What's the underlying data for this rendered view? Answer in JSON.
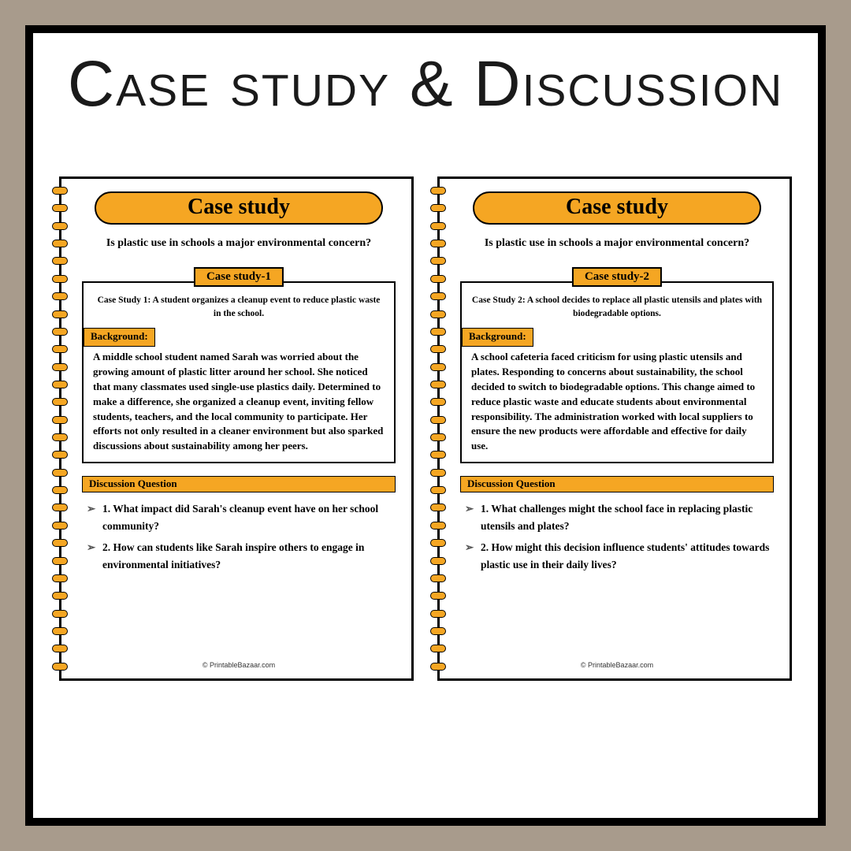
{
  "colors": {
    "outer_bg": "#a89b8c",
    "frame_bg": "#ffffff",
    "frame_border": "#000000",
    "accent": "#f5a623",
    "text": "#000000"
  },
  "title": "Case study & Discussion",
  "title_fontsize": 82,
  "spiral_ring_count": 28,
  "sheets": [
    {
      "banner": "Case study",
      "subtitle": "Is plastic use in schools a major environmental concern?",
      "box_label": "Case study-1",
      "summary": "Case Study 1: A student organizes a cleanup event to reduce plastic waste in the school.",
      "bg_label": "Background:",
      "bg_text": "A middle school student named Sarah was worried about the growing amount of plastic litter around her school. She noticed that many classmates used single-use plastics daily. Determined to make a difference, she organized a cleanup event, inviting fellow students, teachers, and the local community to participate. Her efforts not only resulted in a cleaner environment but also sparked discussions about sustainability among her peers.",
      "dq_label": "Discussion Question",
      "questions": [
        "1. What impact did Sarah's cleanup event have on her school community?",
        "2. How can students like Sarah inspire others to engage in environmental initiatives?"
      ],
      "footer": "© PrintableBazaar.com"
    },
    {
      "banner": "Case study",
      "subtitle": "Is plastic use in schools a major environmental concern?",
      "box_label": "Case study-2",
      "summary": "Case Study 2: A school decides to replace all plastic utensils and plates with biodegradable options.",
      "bg_label": "Background:",
      "bg_text": "A school cafeteria faced criticism for using plastic utensils and plates. Responding to concerns about sustainability, the school decided to switch to biodegradable options. This change aimed to reduce plastic waste and educate students about environmental responsibility. The administration worked with local suppliers to ensure the new products were affordable and effective for daily use.",
      "dq_label": "Discussion Question",
      "questions": [
        "1. What challenges might the school face in replacing plastic utensils and plates?",
        "2. How might this decision influence students' attitudes towards plastic use in their daily lives?"
      ],
      "footer": "© PrintableBazaar.com"
    }
  ]
}
